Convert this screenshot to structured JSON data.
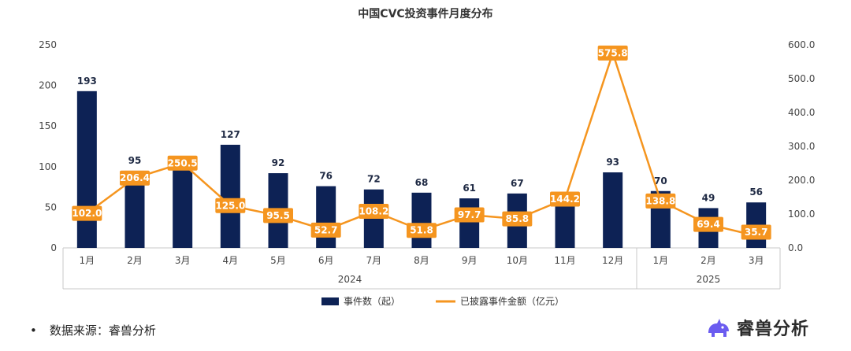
{
  "chart_data": {
    "type": "bar+line",
    "title": "中国CVC投资事件月度分布",
    "categories": [
      "1月",
      "2月",
      "3月",
      "4月",
      "5月",
      "6月",
      "7月",
      "8月",
      "9月",
      "10月",
      "11月",
      "12月",
      "1月",
      "2月",
      "3月"
    ],
    "year_groups": [
      {
        "label": "2024",
        "start": 0,
        "end": 11
      },
      {
        "label": "2025",
        "start": 12,
        "end": 14
      }
    ],
    "series": [
      {
        "name": "事件数（起）",
        "type": "bar",
        "axis": "left",
        "color": "#0d2255",
        "values": [
          193,
          95,
          105,
          127,
          92,
          76,
          72,
          68,
          61,
          67,
          60,
          93,
          70,
          49,
          56
        ],
        "labels": [
          "193",
          "95",
          "",
          "127",
          "92",
          "76",
          "72",
          "68",
          "61",
          "67",
          "",
          "93",
          "70",
          "49",
          "56"
        ]
      },
      {
        "name": "已披露事件金额（亿元）",
        "type": "line",
        "axis": "right",
        "color": "#f5951f",
        "values": [
          102.0,
          206.4,
          250.5,
          125.0,
          95.5,
          52.7,
          108.2,
          51.8,
          97.7,
          85.8,
          144.2,
          575.8,
          138.8,
          69.4,
          35.7
        ],
        "labels": [
          "102.0",
          "206.4",
          "250.5",
          "125.0",
          "95.5",
          "52.7",
          "108.2",
          "51.8",
          "97.7",
          "85.8",
          "144.2",
          "575.8",
          "138.8",
          "69.4",
          "35.7"
        ]
      }
    ],
    "y_left": {
      "min": 0,
      "max": 250,
      "ticks": [
        "0",
        "50",
        "100",
        "150",
        "200",
        "250"
      ]
    },
    "y_right": {
      "min": 0,
      "max": 600,
      "ticks": [
        "0.0",
        "100.0",
        "200.0",
        "300.0",
        "400.0",
        "500.0",
        "600.0"
      ]
    },
    "legend_position": "bottom",
    "grid": false
  },
  "footer": {
    "bullet": "•",
    "source_text": "数据来源：睿兽分析",
    "brand_name": "睿兽分析"
  }
}
